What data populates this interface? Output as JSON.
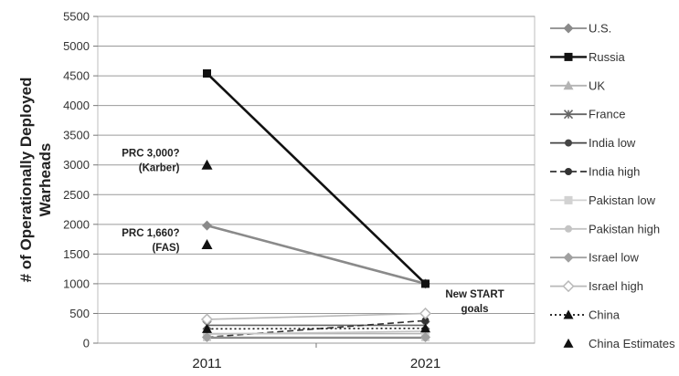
{
  "chart_data": {
    "type": "line",
    "title": "",
    "xlabel": "",
    "ylabel": "# of Operationally Deployed Warheads",
    "categories": [
      "2011",
      "2021"
    ],
    "ylim": [
      0,
      5500
    ],
    "yticks": [
      0,
      500,
      1000,
      1500,
      2000,
      2500,
      3000,
      3500,
      4000,
      4500,
      5000,
      5500
    ],
    "grid": true,
    "legend_position": "right",
    "series": [
      {
        "name": "U.S.",
        "values": [
          1980,
          1000
        ],
        "color": "#8a8a8a",
        "marker": "diamond",
        "dash": "solid"
      },
      {
        "name": "Russia",
        "values": [
          4540,
          1000
        ],
        "color": "#111111",
        "marker": "square",
        "dash": "solid"
      },
      {
        "name": "UK",
        "values": [
          160,
          160
        ],
        "color": "#b4b4b4",
        "marker": "triangle",
        "dash": "solid"
      },
      {
        "name": "France",
        "values": [
          300,
          300
        ],
        "color": "#666666",
        "marker": "cross",
        "dash": "solid"
      },
      {
        "name": "India low",
        "values": [
          90,
          90
        ],
        "color": "#444444",
        "marker": "circle",
        "dash": "solid"
      },
      {
        "name": "India high",
        "values": [
          100,
          380
        ],
        "color": "#333333",
        "marker": "circle",
        "dash": "dashed"
      },
      {
        "name": "Pakistan low",
        "values": [
          100,
          100
        ],
        "color": "#d2d2d2",
        "marker": "square",
        "dash": "solid"
      },
      {
        "name": "Pakistan high",
        "values": [
          150,
          200
        ],
        "color": "#c4c4c4",
        "marker": "circle",
        "dash": "solid"
      },
      {
        "name": "Israel low",
        "values": [
          100,
          100
        ],
        "color": "#a0a0a0",
        "marker": "diamond",
        "dash": "solid"
      },
      {
        "name": "Israel high",
        "values": [
          400,
          500
        ],
        "color": "#b8b8b8",
        "marker": "diamond-open",
        "dash": "solid"
      },
      {
        "name": "China",
        "values": [
          240,
          250
        ],
        "color": "#111111",
        "marker": "triangle",
        "dash": "dotted"
      },
      {
        "name": "China Estimates",
        "values": [
          3000,
          1660
        ],
        "color": "#111111",
        "marker": "triangle",
        "dash": "none",
        "at_category": "2011"
      }
    ],
    "annotations": [
      {
        "lines": [
          "PRC 3,000?",
          "(Karber)"
        ],
        "category": "2011",
        "value": 3000
      },
      {
        "lines": [
          "PRC 1,660?",
          "(FAS)"
        ],
        "category": "2011",
        "value": 1660
      },
      {
        "lines": [
          "New START",
          "goals"
        ],
        "category": "2021",
        "value": 1000
      }
    ]
  }
}
